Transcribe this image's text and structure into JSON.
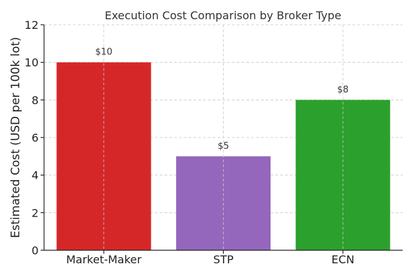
{
  "chart_data": {
    "type": "bar",
    "title": "Execution Cost Comparison by Broker Type",
    "xlabel": "",
    "ylabel": "Estimated Cost (USD per 100k lot)",
    "categories": [
      "Market-Maker",
      "STP",
      "ECN"
    ],
    "values": [
      10,
      5,
      8
    ],
    "data_labels": [
      "$10",
      "$5",
      "$8"
    ],
    "colors": [
      "#d62728",
      "#9467bd",
      "#2ca02c"
    ],
    "ylim": [
      0,
      12
    ],
    "yticks": [
      0,
      2,
      4,
      6,
      8,
      10,
      12
    ],
    "ytick_labels": [
      "0",
      "2",
      "4",
      "6",
      "8",
      "10",
      "12"
    ],
    "grid": true,
    "legend": "none"
  }
}
